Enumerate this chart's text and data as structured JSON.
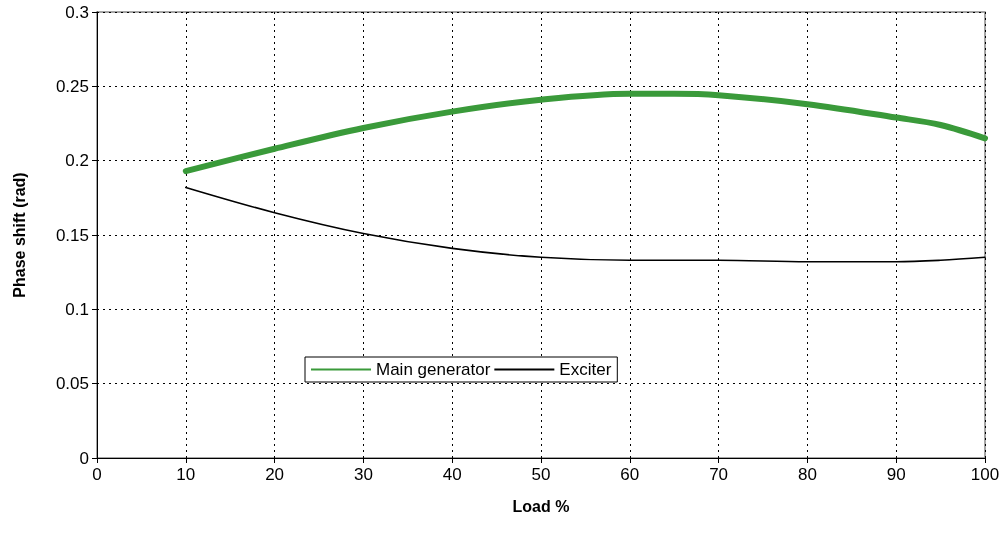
{
  "chart_data": {
    "type": "line",
    "xlabel": "Load %",
    "ylabel": "Phase shift (rad)",
    "xlim": [
      0,
      100
    ],
    "xticks": [
      0,
      10,
      20,
      30,
      40,
      50,
      60,
      70,
      80,
      90,
      100
    ],
    "ylim": [
      0,
      0.3
    ],
    "yticks": [
      0,
      0.05,
      0.1,
      0.15,
      0.2,
      0.25,
      0.3
    ],
    "grid": true,
    "legend": "bottom left",
    "marker": "none",
    "line_style": "solid",
    "series": [
      {
        "name": "Main generator",
        "color": "#3a9a3a",
        "x": [
          10,
          20,
          30,
          40,
          50,
          60,
          65,
          70,
          80,
          90,
          95,
          100
        ],
        "values": [
          0.193,
          0.208,
          0.222,
          0.233,
          0.241,
          0.245,
          0.245,
          0.244,
          0.238,
          0.229,
          0.224,
          0.215
        ]
      },
      {
        "name": "Exciter",
        "color": "#000000",
        "x": [
          10,
          20,
          30,
          40,
          50,
          60,
          70,
          80,
          90,
          95,
          100
        ],
        "values": [
          0.182,
          0.165,
          0.151,
          0.141,
          0.135,
          0.133,
          0.133,
          0.132,
          0.132,
          0.133,
          0.135
        ]
      }
    ]
  }
}
